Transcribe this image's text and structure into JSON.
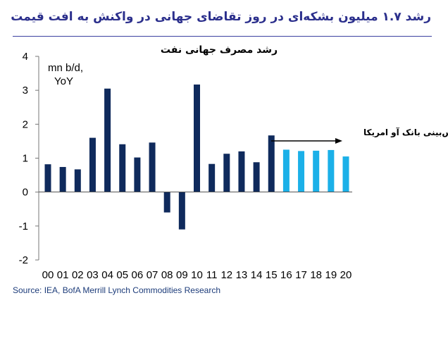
{
  "headline": "رشد ۱.۷ میلیون بشکه‌ای در روز تقاضای جهانی در واکنش به افت قیمت",
  "source": "Source: IEA, BofA Merrill Lynch Commodities Research",
  "chart_data": {
    "type": "bar",
    "title": "رشد مصرف جهانی نفت",
    "unit_label": [
      "mn b/d,",
      "YoY"
    ],
    "categories": [
      "00",
      "01",
      "02",
      "03",
      "04",
      "05",
      "06",
      "07",
      "08",
      "09",
      "10",
      "11",
      "12",
      "13",
      "14",
      "15",
      "16",
      "17",
      "18",
      "19",
      "20"
    ],
    "values": [
      0.82,
      0.74,
      0.67,
      1.6,
      3.05,
      1.41,
      1.02,
      1.46,
      -0.6,
      -1.1,
      3.17,
      0.83,
      1.13,
      1.2,
      0.88,
      1.67,
      1.25,
      1.21,
      1.22,
      1.24,
      1.05
    ],
    "historical_color": "#0f2a5c",
    "forecast_color": "#1bb0e8",
    "forecast_start_index": 16,
    "annotation": "پیش‌بینی بانک آو امریکا",
    "ylim": [
      -2,
      4
    ],
    "yticks": [
      "4",
      "3",
      "2",
      "1",
      "0",
      "-1",
      "-2"
    ],
    "grid": false,
    "legend": "none"
  }
}
